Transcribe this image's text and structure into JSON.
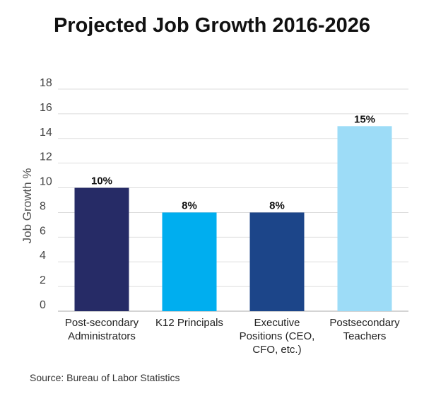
{
  "chart_data": {
    "type": "bar",
    "title": "Projected Job Growth 2016-2026",
    "ylabel": "Job Growth %",
    "xlabel": "",
    "ylim": [
      0,
      18
    ],
    "yticks": [
      0,
      2,
      4,
      6,
      8,
      10,
      12,
      14,
      16,
      18
    ],
    "categories": [
      [
        "Post-secondary",
        "Administrators"
      ],
      [
        "K12 Principals"
      ],
      [
        "Executive",
        "Positions (CEO,",
        "CFO, etc.)"
      ],
      [
        "Postsecondary",
        "Teachers"
      ]
    ],
    "values": [
      10,
      8,
      8,
      15
    ],
    "data_labels": [
      "10%",
      "8%",
      "8%",
      "15%"
    ],
    "colors": [
      "#262b66",
      "#00aeef",
      "#1c4589",
      "#9ddcf7"
    ],
    "grid": true,
    "legend": "none"
  },
  "source": "Source: Bureau of Labor Statistics"
}
